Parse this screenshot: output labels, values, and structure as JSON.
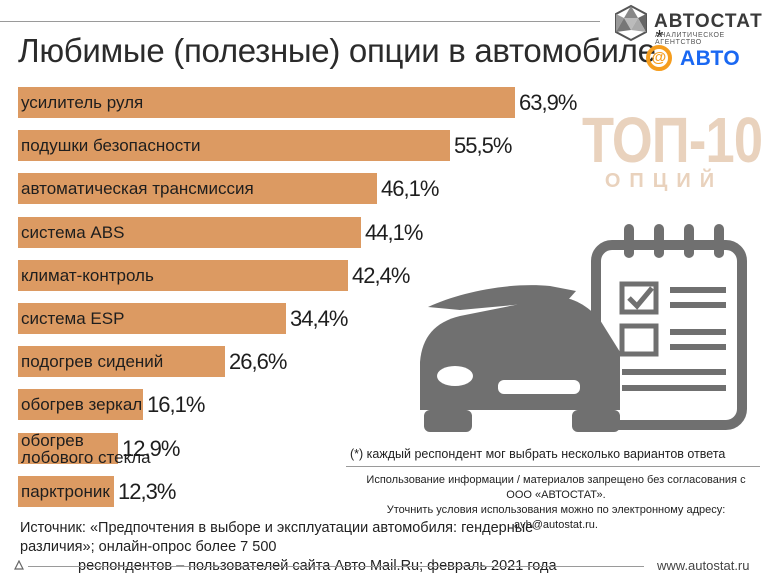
{
  "title": "Любимые (полезные) опции в автомобиле",
  "title_mark": "*",
  "logo": {
    "autostat": "АВТОСТАТ",
    "autostat_sub": "АНАЛИТИЧЕСКОЕ АГЕНТСТВО",
    "mail_at": "@",
    "mail_word": "АВТО"
  },
  "badge": {
    "big": "ТОП-10",
    "small": "ОПЦИЙ"
  },
  "chart_data": {
    "type": "bar",
    "orientation": "horizontal",
    "title": "Любимые (полезные) опции в автомобиле*",
    "unit": "%",
    "categories": [
      "усилитель руля",
      "подушки безопасности",
      "автоматическая трансмиссия",
      "система ABS",
      "климат-контроль",
      "система ESP",
      "подогрев сидений",
      "обогрев зеркал",
      "обогрев лобового стекла",
      "парктроник"
    ],
    "label_lines": [
      [
        "усилитель руля"
      ],
      [
        "подушки безопасности"
      ],
      [
        "автоматическая трансмиссия"
      ],
      [
        "система ABS"
      ],
      [
        "климат-контроль"
      ],
      [
        "система ESP"
      ],
      [
        "подогрев сидений"
      ],
      [
        "обогрев зеркал"
      ],
      [
        "обогрев",
        "лобового стекла"
      ],
      [
        "парктроник"
      ]
    ],
    "values": [
      63.9,
      55.5,
      46.1,
      44.1,
      42.4,
      34.4,
      26.6,
      16.1,
      12.9,
      12.3
    ],
    "value_labels": [
      "63,9%",
      "55,5%",
      "46,1%",
      "44,1%",
      "42,4%",
      "34,4%",
      "26,6%",
      "16,1%",
      "12,9%",
      "12,3%"
    ],
    "xlim": [
      0,
      63.9
    ],
    "bar_color": "#dc9a62"
  },
  "note": "(*) каждый респондент мог выбрать несколько вариантов ответа",
  "usage": {
    "line1": "Использование информации / материалов запрещено без согласования с ООО «АВТОСТАТ».",
    "line2": "Уточнить условия использования можно по электронному адресу: avb@autostat.ru."
  },
  "source": {
    "line1": "Источник: «Предпочтения в выборе и эксплуатации автомобиля: гендерные различия»; онлайн-опрос более 7 500",
    "line2": "респондентов – пользователей сайта Авто Mail.Ru; февраль 2021 года"
  },
  "site": "www.autostat.ru",
  "colors": {
    "bar": "#dc9a62",
    "badge": "#e9d2bd",
    "illustration": "#707070",
    "mail_orange": "#f59d1e",
    "mail_blue": "#1a68f2"
  }
}
